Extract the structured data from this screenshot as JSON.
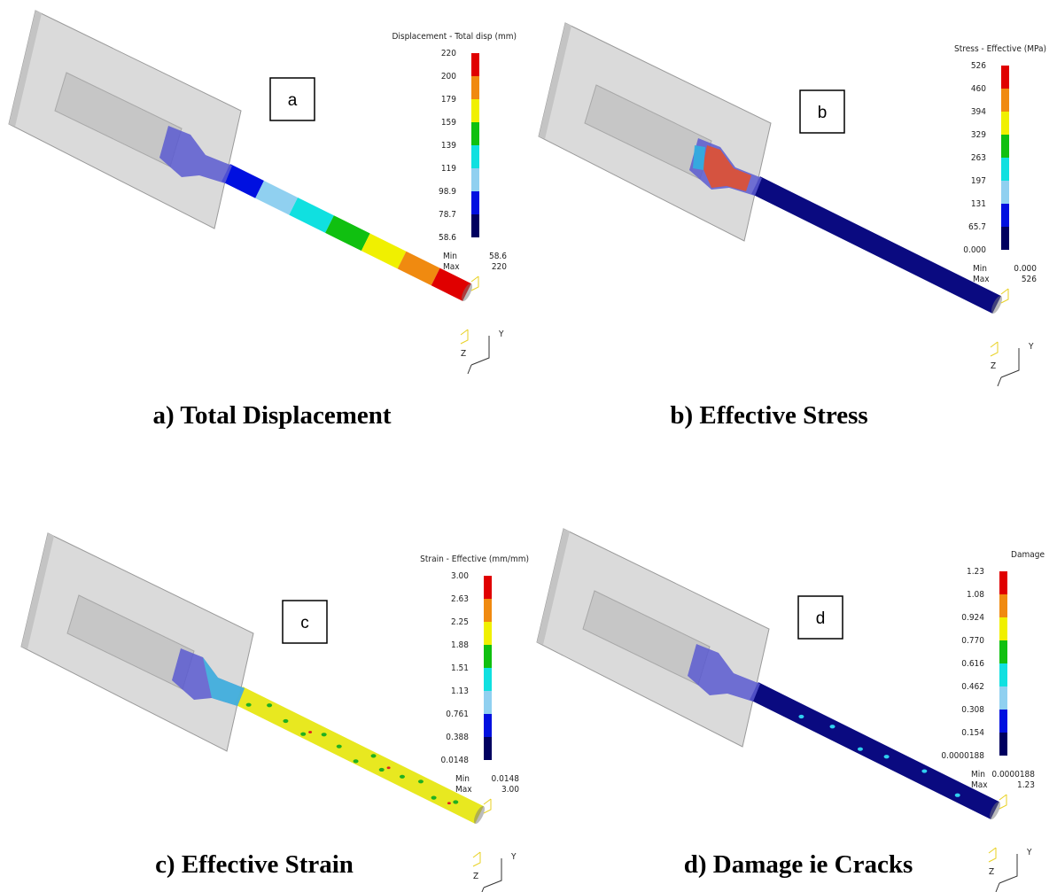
{
  "panels": [
    {
      "label": "a",
      "legend_title": "Displacement - Total disp (mm)",
      "legend_labels": [
        "220",
        "200",
        "179",
        "159",
        "139",
        "119",
        "98.9",
        "78.7",
        "58.6"
      ],
      "min_label": "Min",
      "min_value": "58.6",
      "max_label": "Max",
      "max_value": "220",
      "triad": [
        "Y",
        "Z"
      ],
      "caption": "a)   Total Displacement"
    },
    {
      "label": "b",
      "legend_title": "Stress - Effective (MPa)",
      "legend_labels": [
        "526",
        "460",
        "394",
        "329",
        "263",
        "197",
        "131",
        "65.7",
        "0.000"
      ],
      "min_label": "Min",
      "min_value": "0.000",
      "max_label": "Max",
      "max_value": "526",
      "triad": [
        "Y",
        "Z"
      ],
      "caption": "b) Effective Stress"
    },
    {
      "label": "c",
      "legend_title": "Strain - Effective (mm/mm)",
      "legend_labels": [
        "3.00",
        "2.63",
        "2.25",
        "1.88",
        "1.51",
        "1.13",
        "0.761",
        "0.388",
        "0.0148"
      ],
      "min_label": "Min",
      "min_value": "0.0148",
      "max_label": "Max",
      "max_value": "3.00",
      "triad": [
        "Y",
        "Z"
      ],
      "caption": "c) Effective Strain"
    },
    {
      "label": "d",
      "legend_title": "Damage",
      "legend_labels": [
        "1.23",
        "1.08",
        "0.924",
        "0.770",
        "0.616",
        "0.462",
        "0.308",
        "0.154",
        "0.0000188"
      ],
      "min_label": "Min",
      "min_value": "0.0000188",
      "max_label": "Max",
      "max_value": "1.23",
      "triad": [
        "Y",
        "Z"
      ],
      "caption": "d) Damage ie Cracks"
    }
  ]
}
